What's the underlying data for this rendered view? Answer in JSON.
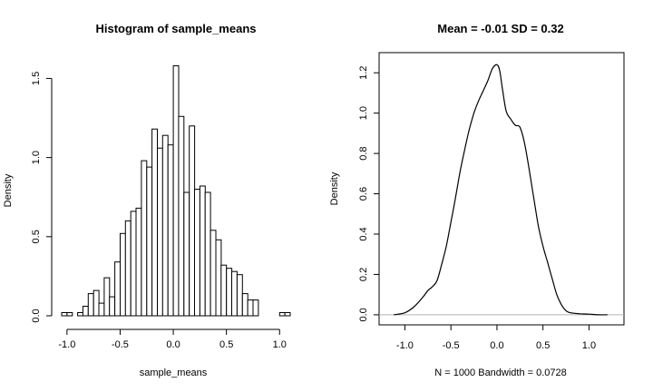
{
  "chart_data": [
    {
      "type": "bar",
      "title": "Histogram of sample_means",
      "xlabel": "sample_means",
      "ylabel": "Density",
      "xlim": [
        -1.05,
        1.1
      ],
      "ylim": [
        0,
        1.6
      ],
      "bin_width": 0.05,
      "x_ticks": [
        -1.0,
        -0.5,
        0.0,
        0.5,
        1.0
      ],
      "x_tick_labels": [
        "-1.0",
        "-0.5",
        "0.0",
        "0.5",
        "1.0"
      ],
      "y_ticks": [
        0.0,
        0.5,
        1.0,
        1.5
      ],
      "y_tick_labels": [
        "0.0",
        "0.5",
        "1.0",
        "1.5"
      ],
      "bins": [
        {
          "x0": -1.05,
          "x1": -1.0,
          "density": 0.02
        },
        {
          "x0": -1.0,
          "x1": -0.95,
          "density": 0.02
        },
        {
          "x0": -0.95,
          "x1": -0.9,
          "density": 0.0
        },
        {
          "x0": -0.9,
          "x1": -0.85,
          "density": 0.02
        },
        {
          "x0": -0.85,
          "x1": -0.8,
          "density": 0.06
        },
        {
          "x0": -0.8,
          "x1": -0.75,
          "density": 0.14
        },
        {
          "x0": -0.75,
          "x1": -0.7,
          "density": 0.16
        },
        {
          "x0": -0.7,
          "x1": -0.65,
          "density": 0.08
        },
        {
          "x0": -0.65,
          "x1": -0.6,
          "density": 0.24
        },
        {
          "x0": -0.6,
          "x1": -0.55,
          "density": 0.12
        },
        {
          "x0": -0.55,
          "x1": -0.5,
          "density": 0.34
        },
        {
          "x0": -0.5,
          "x1": -0.45,
          "density": 0.52
        },
        {
          "x0": -0.45,
          "x1": -0.4,
          "density": 0.6
        },
        {
          "x0": -0.4,
          "x1": -0.35,
          "density": 0.66
        },
        {
          "x0": -0.35,
          "x1": -0.3,
          "density": 0.68
        },
        {
          "x0": -0.3,
          "x1": -0.25,
          "density": 0.98
        },
        {
          "x0": -0.25,
          "x1": -0.2,
          "density": 0.94
        },
        {
          "x0": -0.2,
          "x1": -0.15,
          "density": 1.18
        },
        {
          "x0": -0.15,
          "x1": -0.1,
          "density": 1.06
        },
        {
          "x0": -0.1,
          "x1": -0.05,
          "density": 1.14
        },
        {
          "x0": -0.05,
          "x1": 0.0,
          "density": 1.08
        },
        {
          "x0": 0.0,
          "x1": 0.05,
          "density": 1.58
        },
        {
          "x0": 0.05,
          "x1": 0.1,
          "density": 1.26
        },
        {
          "x0": 0.1,
          "x1": 0.15,
          "density": 0.78
        },
        {
          "x0": 0.15,
          "x1": 0.2,
          "density": 1.2
        },
        {
          "x0": 0.2,
          "x1": 0.25,
          "density": 0.8
        },
        {
          "x0": 0.25,
          "x1": 0.3,
          "density": 0.82
        },
        {
          "x0": 0.3,
          "x1": 0.35,
          "density": 0.78
        },
        {
          "x0": 0.35,
          "x1": 0.4,
          "density": 0.54
        },
        {
          "x0": 0.4,
          "x1": 0.45,
          "density": 0.48
        },
        {
          "x0": 0.45,
          "x1": 0.5,
          "density": 0.32
        },
        {
          "x0": 0.5,
          "x1": 0.55,
          "density": 0.3
        },
        {
          "x0": 0.55,
          "x1": 0.6,
          "density": 0.28
        },
        {
          "x0": 0.6,
          "x1": 0.65,
          "density": 0.26
        },
        {
          "x0": 0.65,
          "x1": 0.7,
          "density": 0.14
        },
        {
          "x0": 0.7,
          "x1": 0.75,
          "density": 0.1
        },
        {
          "x0": 0.75,
          "x1": 0.8,
          "density": 0.1
        },
        {
          "x0": 0.8,
          "x1": 0.85,
          "density": 0.0
        },
        {
          "x0": 0.85,
          "x1": 0.9,
          "density": 0.0
        },
        {
          "x0": 0.9,
          "x1": 0.95,
          "density": 0.0
        },
        {
          "x0": 0.95,
          "x1": 1.0,
          "density": 0.0
        },
        {
          "x0": 1.0,
          "x1": 1.05,
          "density": 0.02
        },
        {
          "x0": 1.05,
          "x1": 1.1,
          "density": 0.02
        }
      ],
      "grid": false
    },
    {
      "type": "line",
      "title": "Mean =  -0.01 SD =  0.32",
      "xlabel": "N = 1000   Bandwidth = 0.0728",
      "ylabel": "Density",
      "xlim": [
        -1.28,
        1.38
      ],
      "ylim": [
        -0.05,
        1.3
      ],
      "x_ticks": [
        -1.0,
        -0.5,
        0.0,
        0.5,
        1.0
      ],
      "x_tick_labels": [
        "-1.0",
        "-0.5",
        "0.0",
        "0.5",
        "1.0"
      ],
      "y_ticks": [
        0.0,
        0.2,
        0.4,
        0.6,
        0.8,
        1.0,
        1.2
      ],
      "y_tick_labels": [
        "0.0",
        "0.2",
        "0.4",
        "0.6",
        "0.8",
        "1.0",
        "1.2"
      ],
      "series": [
        {
          "x": [
            -1.12,
            -1.0,
            -0.9,
            -0.8,
            -0.75,
            -0.7,
            -0.65,
            -0.6,
            -0.55,
            -0.5,
            -0.45,
            -0.4,
            -0.35,
            -0.3,
            -0.25,
            -0.2,
            -0.15,
            -0.1,
            -0.05,
            0.0,
            0.03,
            0.06,
            0.1,
            0.15,
            0.2,
            0.25,
            0.3,
            0.35,
            0.4,
            0.45,
            0.5,
            0.55,
            0.6,
            0.65,
            0.7,
            0.75,
            0.8,
            0.9,
            1.0,
            1.1,
            1.2
          ],
          "y": [
            0.0,
            0.01,
            0.04,
            0.09,
            0.12,
            0.14,
            0.17,
            0.25,
            0.34,
            0.46,
            0.58,
            0.71,
            0.82,
            0.92,
            1.0,
            1.06,
            1.11,
            1.16,
            1.22,
            1.24,
            1.21,
            1.12,
            1.01,
            0.97,
            0.94,
            0.93,
            0.85,
            0.72,
            0.58,
            0.44,
            0.34,
            0.26,
            0.18,
            0.1,
            0.05,
            0.02,
            0.01,
            0.005,
            0.003,
            0.0,
            0.0
          ]
        }
      ],
      "baseline": {
        "y": 0,
        "color": "#b5b5b5"
      },
      "grid": false
    }
  ]
}
